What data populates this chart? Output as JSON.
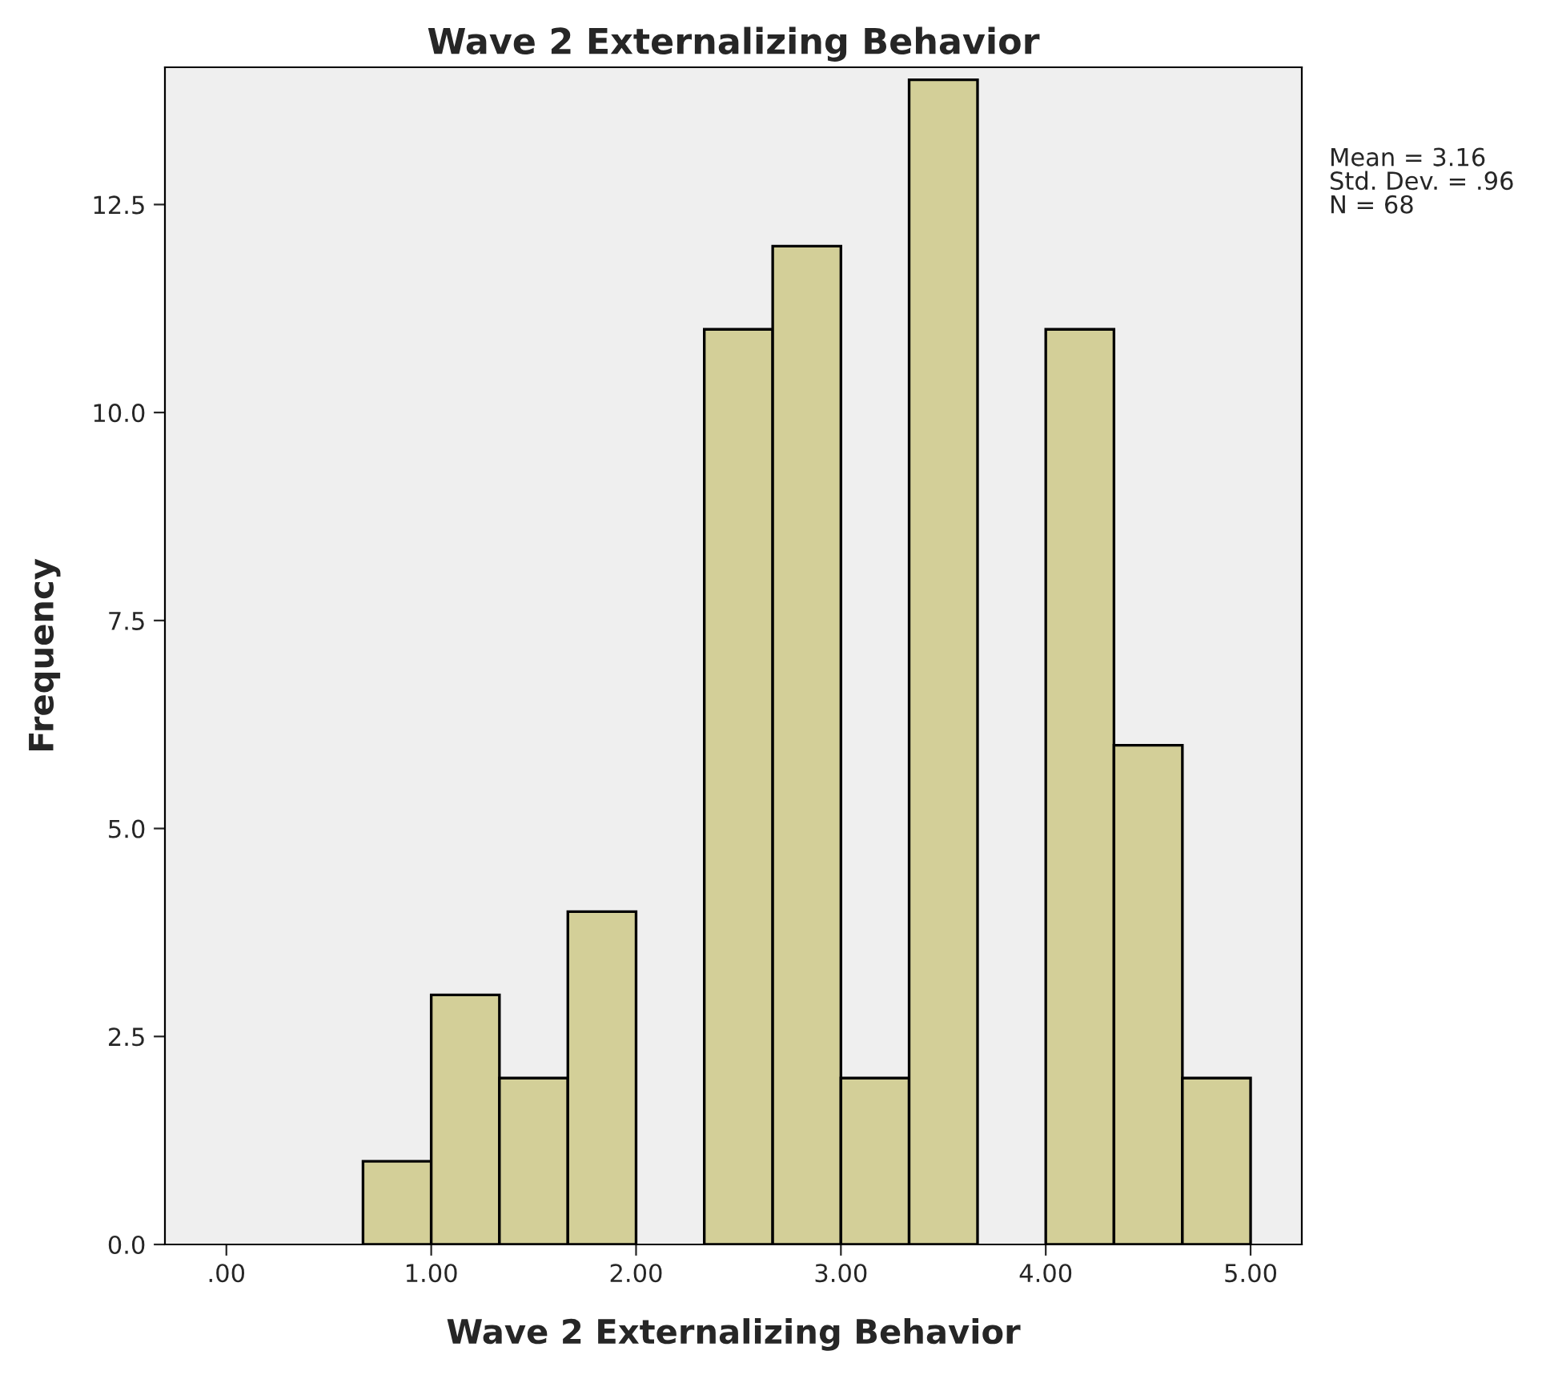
{
  "chart_data": {
    "type": "histogram",
    "title": "Wave 2 Externalizing Behavior",
    "xlabel": "Wave 2 Externalizing Behavior",
    "ylabel": "Frequency",
    "bins": [
      0.667,
      1.0,
      1.333,
      1.667,
      2.0,
      2.333,
      2.667,
      3.0,
      3.333,
      3.667,
      4.0,
      4.333,
      4.667,
      5.0
    ],
    "values": [
      1,
      3,
      2,
      4,
      0,
      11,
      12,
      2,
      14,
      0,
      11,
      6,
      2
    ],
    "color": "#d3cf98",
    "xlim": [
      -0.3,
      5.25
    ],
    "xticks": [
      {
        "value": 0,
        "label": ".00"
      },
      {
        "value": 1,
        "label": "1.00"
      },
      {
        "value": 2,
        "label": "2.00"
      },
      {
        "value": 3,
        "label": "3.00"
      },
      {
        "value": 4,
        "label": "4.00"
      },
      {
        "value": 5,
        "label": "5.00"
      }
    ],
    "ylim": [
      0,
      14.15
    ],
    "yticks": [
      {
        "value": 0,
        "label": "0.0"
      },
      {
        "value": 2.5,
        "label": "2.5"
      },
      {
        "value": 5,
        "label": "5.0"
      },
      {
        "value": 7.5,
        "label": "7.5"
      },
      {
        "value": 10,
        "label": "10.0"
      },
      {
        "value": 12.5,
        "label": "12.5"
      }
    ],
    "grid": false,
    "annotations": [
      "Mean = 3.16",
      "Std. Dev. = .96",
      "N = 68"
    ]
  }
}
